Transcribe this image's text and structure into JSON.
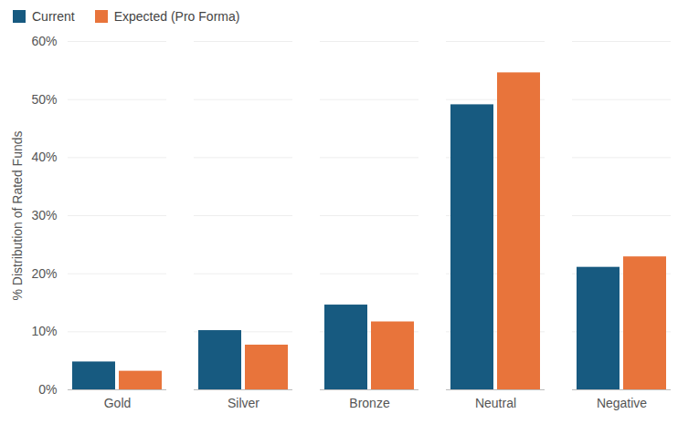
{
  "chart_data": {
    "type": "bar",
    "categories": [
      "Gold",
      "Silver",
      "Bronze",
      "Neutral",
      "Negative"
    ],
    "series": [
      {
        "name": "Current",
        "color": "#175a80",
        "values": [
          4.8,
          10.2,
          14.6,
          49.1,
          21.1
        ]
      },
      {
        "name": "Expected (Pro Forma)",
        "color": "#e8743b",
        "values": [
          3.2,
          7.7,
          11.7,
          54.6,
          22.9
        ]
      }
    ],
    "y_label": "% Distribution of Rated Funds",
    "ylim": [
      0,
      60
    ],
    "yticks": [
      {
        "value": 0,
        "label": "0%"
      },
      {
        "value": 10,
        "label": "10%"
      },
      {
        "value": 20,
        "label": "20%"
      },
      {
        "value": 30,
        "label": "30%"
      },
      {
        "value": 40,
        "label": "40%"
      },
      {
        "value": 50,
        "label": "50%"
      },
      {
        "value": 60,
        "label": "60%"
      }
    ],
    "grid": true,
    "legend": "top-left"
  }
}
